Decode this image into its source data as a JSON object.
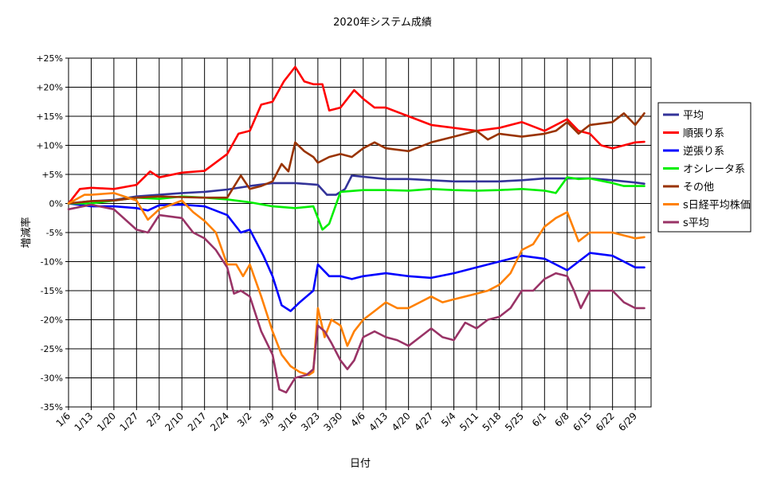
{
  "chart_data": {
    "type": "line",
    "title": "2020年システム成績",
    "xlabel": "日付",
    "ylabel": "増減率",
    "ylim": [
      -35,
      25
    ],
    "yticks": [
      25,
      20,
      15,
      10,
      5,
      0,
      -5,
      -10,
      -15,
      -20,
      -25,
      -30,
      -35
    ],
    "ytick_labels": [
      "+25%",
      "+20%",
      "+15%",
      "+10%",
      "+5%",
      "0%",
      "-5%",
      "-10%",
      "-15%",
      "-20%",
      "-25%",
      "-30%",
      "-35%"
    ],
    "x_categories": [
      "1/6",
      "1/13",
      "1/20",
      "1/27",
      "2/3",
      "2/10",
      "2/17",
      "2/24",
      "3/2",
      "3/9",
      "3/16",
      "3/23",
      "3/30",
      "4/6",
      "4/13",
      "4/20",
      "4/27",
      "5/4",
      "5/11",
      "5/18",
      "5/25",
      "6/1",
      "6/8",
      "6/15",
      "6/22",
      "6/29"
    ],
    "x_range": [
      0,
      25.7
    ],
    "grid": true,
    "legend_position": "right",
    "series": [
      {
        "name": "平均",
        "color": "#333399",
        "points": [
          [
            0,
            0
          ],
          [
            1,
            0.4
          ],
          [
            2,
            0.6
          ],
          [
            3,
            1.2
          ],
          [
            4,
            1.5
          ],
          [
            5,
            1.8
          ],
          [
            6,
            2.0
          ],
          [
            7,
            2.4
          ],
          [
            8,
            3.0
          ],
          [
            9,
            3.5
          ],
          [
            10,
            3.5
          ],
          [
            11,
            3.2
          ],
          [
            11.4,
            1.5
          ],
          [
            11.8,
            1.5
          ],
          [
            12.2,
            2.5
          ],
          [
            12.5,
            4.8
          ],
          [
            13,
            4.6
          ],
          [
            14,
            4.2
          ],
          [
            15,
            4.2
          ],
          [
            16,
            4.0
          ],
          [
            17,
            3.8
          ],
          [
            18,
            3.8
          ],
          [
            19,
            3.8
          ],
          [
            20,
            4.0
          ],
          [
            21,
            4.3
          ],
          [
            22,
            4.3
          ],
          [
            23,
            4.3
          ],
          [
            24,
            4.0
          ],
          [
            25,
            3.6
          ],
          [
            25.4,
            3.4
          ]
        ]
      },
      {
        "name": "順張り系",
        "color": "#ff0000",
        "points": [
          [
            0,
            0
          ],
          [
            0.5,
            2.5
          ],
          [
            1,
            2.7
          ],
          [
            2,
            2.5
          ],
          [
            3,
            3.2
          ],
          [
            3.6,
            5.5
          ],
          [
            4,
            4.5
          ],
          [
            5,
            5.3
          ],
          [
            6,
            5.6
          ],
          [
            7,
            8.5
          ],
          [
            7.5,
            12
          ],
          [
            8,
            12.5
          ],
          [
            8.5,
            17
          ],
          [
            9,
            17.5
          ],
          [
            9.5,
            21
          ],
          [
            10,
            23.5
          ],
          [
            10.4,
            21
          ],
          [
            10.8,
            20.5
          ],
          [
            11.2,
            20.5
          ],
          [
            11.5,
            16
          ],
          [
            12,
            16.5
          ],
          [
            12.6,
            19.5
          ],
          [
            13,
            18
          ],
          [
            13.5,
            16.5
          ],
          [
            14,
            16.5
          ],
          [
            15,
            15
          ],
          [
            16,
            13.5
          ],
          [
            17,
            13
          ],
          [
            18,
            12.5
          ],
          [
            19,
            13
          ],
          [
            20,
            14
          ],
          [
            21,
            12.5
          ],
          [
            22,
            14.5
          ],
          [
            22.5,
            12.5
          ],
          [
            23,
            12
          ],
          [
            23.5,
            10
          ],
          [
            24,
            9.5
          ],
          [
            24.5,
            10
          ],
          [
            25,
            10.5
          ],
          [
            25.4,
            10.6
          ]
        ]
      },
      {
        "name": "逆張り系",
        "color": "#0000ff",
        "points": [
          [
            0,
            0
          ],
          [
            1,
            -0.5
          ],
          [
            2,
            -0.5
          ],
          [
            3,
            -0.8
          ],
          [
            3.5,
            -1.2
          ],
          [
            4,
            -0.3
          ],
          [
            5,
            -0.2
          ],
          [
            6,
            -0.5
          ],
          [
            7,
            -2
          ],
          [
            7.6,
            -5
          ],
          [
            8,
            -4.5
          ],
          [
            8.6,
            -9
          ],
          [
            9,
            -12.5
          ],
          [
            9.4,
            -17.5
          ],
          [
            9.8,
            -18.5
          ],
          [
            10.2,
            -17
          ],
          [
            10.8,
            -15
          ],
          [
            11,
            -10.5
          ],
          [
            11.5,
            -12.5
          ],
          [
            12,
            -12.5
          ],
          [
            12.5,
            -13
          ],
          [
            13,
            -12.5
          ],
          [
            14,
            -12
          ],
          [
            15,
            -12.5
          ],
          [
            16,
            -12.8
          ],
          [
            17,
            -12
          ],
          [
            18,
            -11
          ],
          [
            19,
            -10
          ],
          [
            19.5,
            -9.5
          ],
          [
            20,
            -9
          ],
          [
            21,
            -9.5
          ],
          [
            21.5,
            -10.5
          ],
          [
            22,
            -11.5
          ],
          [
            22.5,
            -10
          ],
          [
            23,
            -8.5
          ],
          [
            24,
            -9
          ],
          [
            24.5,
            -10
          ],
          [
            25,
            -11
          ],
          [
            25.4,
            -11
          ]
        ]
      },
      {
        "name": "オシレータ系",
        "color": "#00ee00",
        "points": [
          [
            0,
            0
          ],
          [
            1,
            0
          ],
          [
            2,
            0.5
          ],
          [
            3,
            1
          ],
          [
            4,
            0.8
          ],
          [
            5,
            1.2
          ],
          [
            6,
            1
          ],
          [
            7,
            0.7
          ],
          [
            8,
            0.2
          ],
          [
            9,
            -0.5
          ],
          [
            10,
            -0.8
          ],
          [
            10.8,
            -0.5
          ],
          [
            11.2,
            -4.5
          ],
          [
            11.5,
            -3.5
          ],
          [
            12,
            2
          ],
          [
            13,
            2.3
          ],
          [
            14,
            2.3
          ],
          [
            15,
            2.2
          ],
          [
            16,
            2.5
          ],
          [
            17,
            2.3
          ],
          [
            18,
            2.2
          ],
          [
            19,
            2.3
          ],
          [
            20,
            2.5
          ],
          [
            21,
            2.2
          ],
          [
            21.5,
            1.8
          ],
          [
            22,
            4.5
          ],
          [
            22.5,
            4.2
          ],
          [
            23,
            4.3
          ],
          [
            24,
            3.5
          ],
          [
            24.5,
            3
          ],
          [
            25,
            3
          ],
          [
            25.4,
            3
          ]
        ]
      },
      {
        "name": "その他",
        "color": "#993300",
        "points": [
          [
            0,
            0
          ],
          [
            1,
            0.4
          ],
          [
            2,
            0.5
          ],
          [
            3,
            1
          ],
          [
            4,
            1.2
          ],
          [
            5,
            1.1
          ],
          [
            6,
            1
          ],
          [
            7,
            1
          ],
          [
            7.6,
            4.8
          ],
          [
            8,
            2.5
          ],
          [
            8.5,
            3
          ],
          [
            9,
            3.8
          ],
          [
            9.4,
            6.8
          ],
          [
            9.7,
            5.5
          ],
          [
            10,
            10.5
          ],
          [
            10.4,
            9
          ],
          [
            10.8,
            8
          ],
          [
            11,
            7
          ],
          [
            11.5,
            8
          ],
          [
            12,
            8.5
          ],
          [
            12.5,
            8
          ],
          [
            13,
            9.5
          ],
          [
            13.5,
            10.5
          ],
          [
            14,
            9.5
          ],
          [
            15,
            9
          ],
          [
            16,
            10.5
          ],
          [
            17,
            11.5
          ],
          [
            18,
            12.5
          ],
          [
            18.5,
            11
          ],
          [
            19,
            12
          ],
          [
            20,
            11.5
          ],
          [
            21,
            12
          ],
          [
            21.5,
            12.5
          ],
          [
            22,
            14
          ],
          [
            22.5,
            12
          ],
          [
            23,
            13.5
          ],
          [
            24,
            14
          ],
          [
            24.5,
            15.5
          ],
          [
            25,
            13.5
          ],
          [
            25.4,
            15.5
          ]
        ]
      },
      {
        "name": "s日経平均株価",
        "color": "#ff8000",
        "points": [
          [
            0,
            0
          ],
          [
            0.7,
            1.5
          ],
          [
            1,
            1.5
          ],
          [
            2,
            1.8
          ],
          [
            3,
            0.5
          ],
          [
            3.5,
            -2.8
          ],
          [
            4,
            -1
          ],
          [
            5,
            0.5
          ],
          [
            5.5,
            -1.5
          ],
          [
            6,
            -3
          ],
          [
            6.5,
            -5
          ],
          [
            7,
            -10.5
          ],
          [
            7.4,
            -10.5
          ],
          [
            7.7,
            -12.5
          ],
          [
            8,
            -10.5
          ],
          [
            8.5,
            -16
          ],
          [
            9,
            -22
          ],
          [
            9.4,
            -26
          ],
          [
            9.8,
            -28
          ],
          [
            10.2,
            -29
          ],
          [
            10.6,
            -29.5
          ],
          [
            10.8,
            -29
          ],
          [
            11,
            -18
          ],
          [
            11.3,
            -23
          ],
          [
            11.6,
            -20
          ],
          [
            12,
            -21
          ],
          [
            12.3,
            -24.5
          ],
          [
            12.6,
            -22
          ],
          [
            13,
            -20
          ],
          [
            13.5,
            -18.5
          ],
          [
            14,
            -17
          ],
          [
            14.5,
            -18
          ],
          [
            15,
            -18
          ],
          [
            15.5,
            -17
          ],
          [
            16,
            -16
          ],
          [
            16.5,
            -17
          ],
          [
            17,
            -16.5
          ],
          [
            18,
            -15.5
          ],
          [
            18.5,
            -15
          ],
          [
            19,
            -14
          ],
          [
            19.5,
            -12
          ],
          [
            20,
            -8
          ],
          [
            20.5,
            -7
          ],
          [
            21,
            -4
          ],
          [
            21.5,
            -2.5
          ],
          [
            22,
            -1.5
          ],
          [
            22.5,
            -6.5
          ],
          [
            23,
            -5
          ],
          [
            24,
            -5
          ],
          [
            24.5,
            -5.5
          ],
          [
            25,
            -6
          ],
          [
            25.4,
            -5.8
          ]
        ]
      },
      {
        "name": "s平均",
        "color": "#993366",
        "points": [
          [
            0,
            -1
          ],
          [
            1,
            -0.2
          ],
          [
            2,
            -1
          ],
          [
            3,
            -4.5
          ],
          [
            3.5,
            -5
          ],
          [
            4,
            -2
          ],
          [
            5,
            -2.5
          ],
          [
            5.5,
            -5
          ],
          [
            6,
            -6
          ],
          [
            6.5,
            -8
          ],
          [
            7,
            -11
          ],
          [
            7.3,
            -15.5
          ],
          [
            7.6,
            -15
          ],
          [
            8,
            -16
          ],
          [
            8.5,
            -22
          ],
          [
            9,
            -26
          ],
          [
            9.3,
            -32
          ],
          [
            9.6,
            -32.5
          ],
          [
            10,
            -30
          ],
          [
            10.5,
            -29.5
          ],
          [
            10.8,
            -28.5
          ],
          [
            11,
            -21
          ],
          [
            11.3,
            -22
          ],
          [
            11.6,
            -24
          ],
          [
            12,
            -27
          ],
          [
            12.3,
            -28.5
          ],
          [
            12.6,
            -27
          ],
          [
            13,
            -23
          ],
          [
            13.5,
            -22
          ],
          [
            14,
            -23
          ],
          [
            14.5,
            -23.5
          ],
          [
            15,
            -24.5
          ],
          [
            15.5,
            -23
          ],
          [
            16,
            -21.5
          ],
          [
            16.5,
            -23
          ],
          [
            17,
            -23.5
          ],
          [
            17.5,
            -20.5
          ],
          [
            18,
            -21.5
          ],
          [
            18.5,
            -20
          ],
          [
            19,
            -19.5
          ],
          [
            19.5,
            -18
          ],
          [
            20,
            -15
          ],
          [
            20.5,
            -15
          ],
          [
            21,
            -13
          ],
          [
            21.5,
            -12
          ],
          [
            22,
            -12.5
          ],
          [
            22.3,
            -15
          ],
          [
            22.6,
            -18
          ],
          [
            23,
            -15
          ],
          [
            24,
            -15
          ],
          [
            24.5,
            -17
          ],
          [
            25,
            -18
          ],
          [
            25.4,
            -18
          ]
        ]
      }
    ]
  }
}
